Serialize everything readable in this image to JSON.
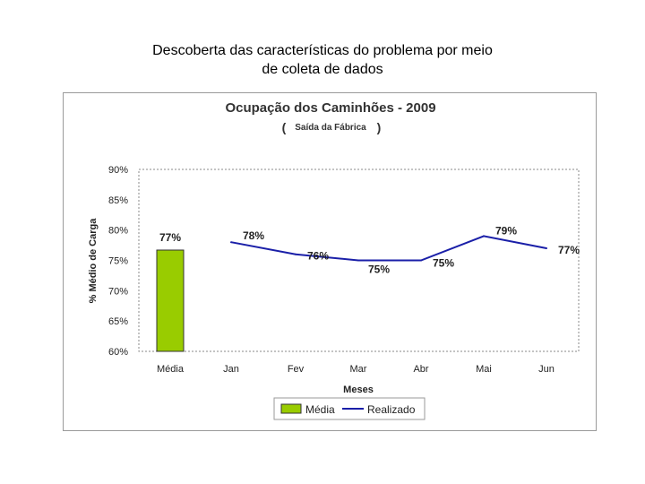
{
  "slide": {
    "title_line1": "Descoberta das características do problema por meio",
    "title_line2": "de coleta de dados"
  },
  "chart_data": {
    "type": "bar+line",
    "title": "Ocupação dos Caminhões  - 2009",
    "subtitle_open": "(",
    "subtitle": "Saída da Fábrica",
    "subtitle_close": ")",
    "xlabel": "Meses",
    "ylabel": "% Médio de Carga",
    "ylim": [
      60,
      90
    ],
    "yticks": [
      90,
      85,
      80,
      75,
      70,
      65,
      60
    ],
    "ytick_labels": [
      "90%",
      "85%",
      "80%",
      "75%",
      "70%",
      "65%",
      "60%"
    ],
    "categories": [
      "Média",
      "Jan",
      "Fev",
      "Mar",
      "Abr",
      "Mai",
      "Jun"
    ],
    "series": [
      {
        "name": "Média",
        "kind": "bar",
        "color": "#99cc00",
        "points": [
          {
            "category": "Média",
            "value": 76.7,
            "label": "77%"
          }
        ]
      },
      {
        "name": "Realizado",
        "kind": "line",
        "color": "#1a1fa8",
        "points": [
          {
            "category": "Jan",
            "value": 78,
            "label": "78%"
          },
          {
            "category": "Fev",
            "value": 76,
            "label": "76%"
          },
          {
            "category": "Mar",
            "value": 75,
            "label": "75%"
          },
          {
            "category": "Abr",
            "value": 75,
            "label": "75%"
          },
          {
            "category": "Mai",
            "value": 79,
            "label": "79%"
          },
          {
            "category": "Jun",
            "value": 77,
            "label": "77%"
          }
        ]
      }
    ],
    "grid": false,
    "legend": {
      "position": "bottom",
      "entries": [
        "Média",
        "Realizado"
      ]
    }
  }
}
